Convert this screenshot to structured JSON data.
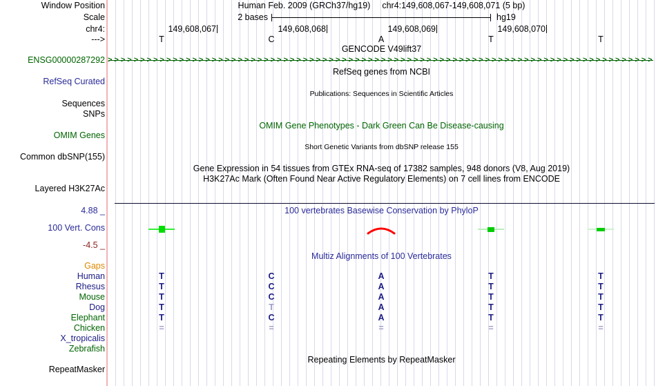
{
  "colors": {
    "track_green": "#006400",
    "link_blue": "#2a2a99",
    "base_navy": "#1b1b85",
    "dim_base": "#9e9ec9",
    "maroon": "#8b2323",
    "orange": "#dd8800",
    "grid_line": "#d9d9ec",
    "boundary_pink": "#f2b3b3",
    "separator_navy": "#0b0b2e"
  },
  "header": {
    "assembly_title": "Human Feb. 2009 (GRCh37/hg19)",
    "position_title": "chr4:149,608,067-149,608,071 (5 bp)",
    "window_position_label": "Window Position",
    "scale_label": "Scale",
    "chrom_label": "chr4:",
    "strand_label": "--->",
    "scale_bar": {
      "label": "2 bases",
      "assembly": "hg19"
    },
    "ruler_ticks": [
      "149,608,067",
      "149,608,068",
      "149,608,069",
      "149,608,070"
    ],
    "bases": [
      "T",
      "C",
      "A",
      "T",
      "T"
    ]
  },
  "strand_arrows": {
    "glyph": ">",
    "count": 88
  },
  "tracks": {
    "gencode": {
      "center_title": "GENCODE V49lift37",
      "item_label": "ENSG00000287292"
    },
    "refseq": {
      "center_title": "RefSeq genes from NCBI",
      "label": "RefSeq Curated"
    },
    "publications": {
      "center_title": "Publications: Sequences in Scientific Articles",
      "label_top": "Sequences",
      "label_bottom": "SNPs"
    },
    "omim": {
      "center_title": "OMIM Gene Phenotypes - Dark Green Can Be Disease-causing",
      "label": "OMIM Genes"
    },
    "dbsnp": {
      "center_title": "Short Genetic Variants from dbSNP release 155",
      "label": "Common dbSNP(155)"
    },
    "gtex": {
      "center_title": "Gene Expression in 54 tissues from GTEx RNA-seq of 17382 samples, 948 donors (V8, Aug 2019)"
    },
    "h3k27ac": {
      "center_title": "H3K27Ac Mark (Often Found Near Active Regulatory Elements) on 7 cell lines from ENCODE",
      "label": "Layered H3K27Ac"
    },
    "conservation": {
      "center_title": "100 vertebrates Basewise Conservation by PhyloP",
      "label": "100 Vert. Cons",
      "max_value": "4.88 _",
      "min_value": "-4.5 _",
      "marks": [
        {
          "base_index": 0,
          "shape": "line-square",
          "line_color": "#33ee33",
          "square_color": "#00dd00",
          "square_w": 9,
          "square_h": 10
        },
        {
          "base_index": 2,
          "shape": "arc",
          "color": "#ff0000"
        },
        {
          "base_index": 3,
          "shape": "line-square",
          "line_color": "#b9edb9",
          "square_color": "#00cc00",
          "square_w": 10,
          "square_h": 7
        },
        {
          "base_index": 4,
          "shape": "line-square",
          "line_color": "#c9f2c9",
          "square_color": "#00cc00",
          "square_w": 12,
          "square_h": 5
        }
      ]
    },
    "multiz": {
      "center_title": "Multiz Alignments of 100 Vertebrates",
      "gaps_label": "Gaps",
      "rows": [
        {
          "species": "Human",
          "color": "#1b1b85",
          "bases": [
            "T",
            "C",
            "A",
            "T",
            "T"
          ],
          "dim": [
            false,
            false,
            false,
            false,
            false
          ]
        },
        {
          "species": "Rhesus",
          "color": "#1b1b85",
          "bases": [
            "T",
            "C",
            "A",
            "T",
            "T"
          ],
          "dim": [
            false,
            false,
            false,
            false,
            false
          ]
        },
        {
          "species": "Mouse",
          "color": "#006400",
          "bases": [
            "T",
            "C",
            "A",
            "T",
            "T"
          ],
          "dim": [
            false,
            false,
            false,
            false,
            false
          ]
        },
        {
          "species": "Dog",
          "color": "#1b1b85",
          "bases": [
            "T",
            "T",
            "A",
            "T",
            "T"
          ],
          "dim": [
            false,
            true,
            false,
            false,
            false
          ]
        },
        {
          "species": "Elephant",
          "color": "#006400",
          "bases": [
            "T",
            "C",
            "A",
            "T",
            "T"
          ],
          "dim": [
            false,
            false,
            false,
            false,
            false
          ]
        },
        {
          "species": "Chicken",
          "color": "#006400",
          "bases": [
            "=",
            "=",
            "=",
            "=",
            "="
          ],
          "dim": [
            true,
            true,
            true,
            true,
            true
          ]
        },
        {
          "species": "X_tropicalis",
          "color": "#1b1b85",
          "bases": [
            "",
            "",
            "",
            "",
            ""
          ],
          "dim": [
            false,
            false,
            false,
            false,
            false
          ]
        },
        {
          "species": "Zebrafish",
          "color": "#006400",
          "bases": [
            "",
            "",
            "",
            "",
            ""
          ],
          "dim": [
            false,
            false,
            false,
            false,
            false
          ]
        }
      ]
    },
    "repeatmasker": {
      "center_title": "Repeating Elements by RepeatMasker",
      "label": "RepeatMasker"
    }
  }
}
